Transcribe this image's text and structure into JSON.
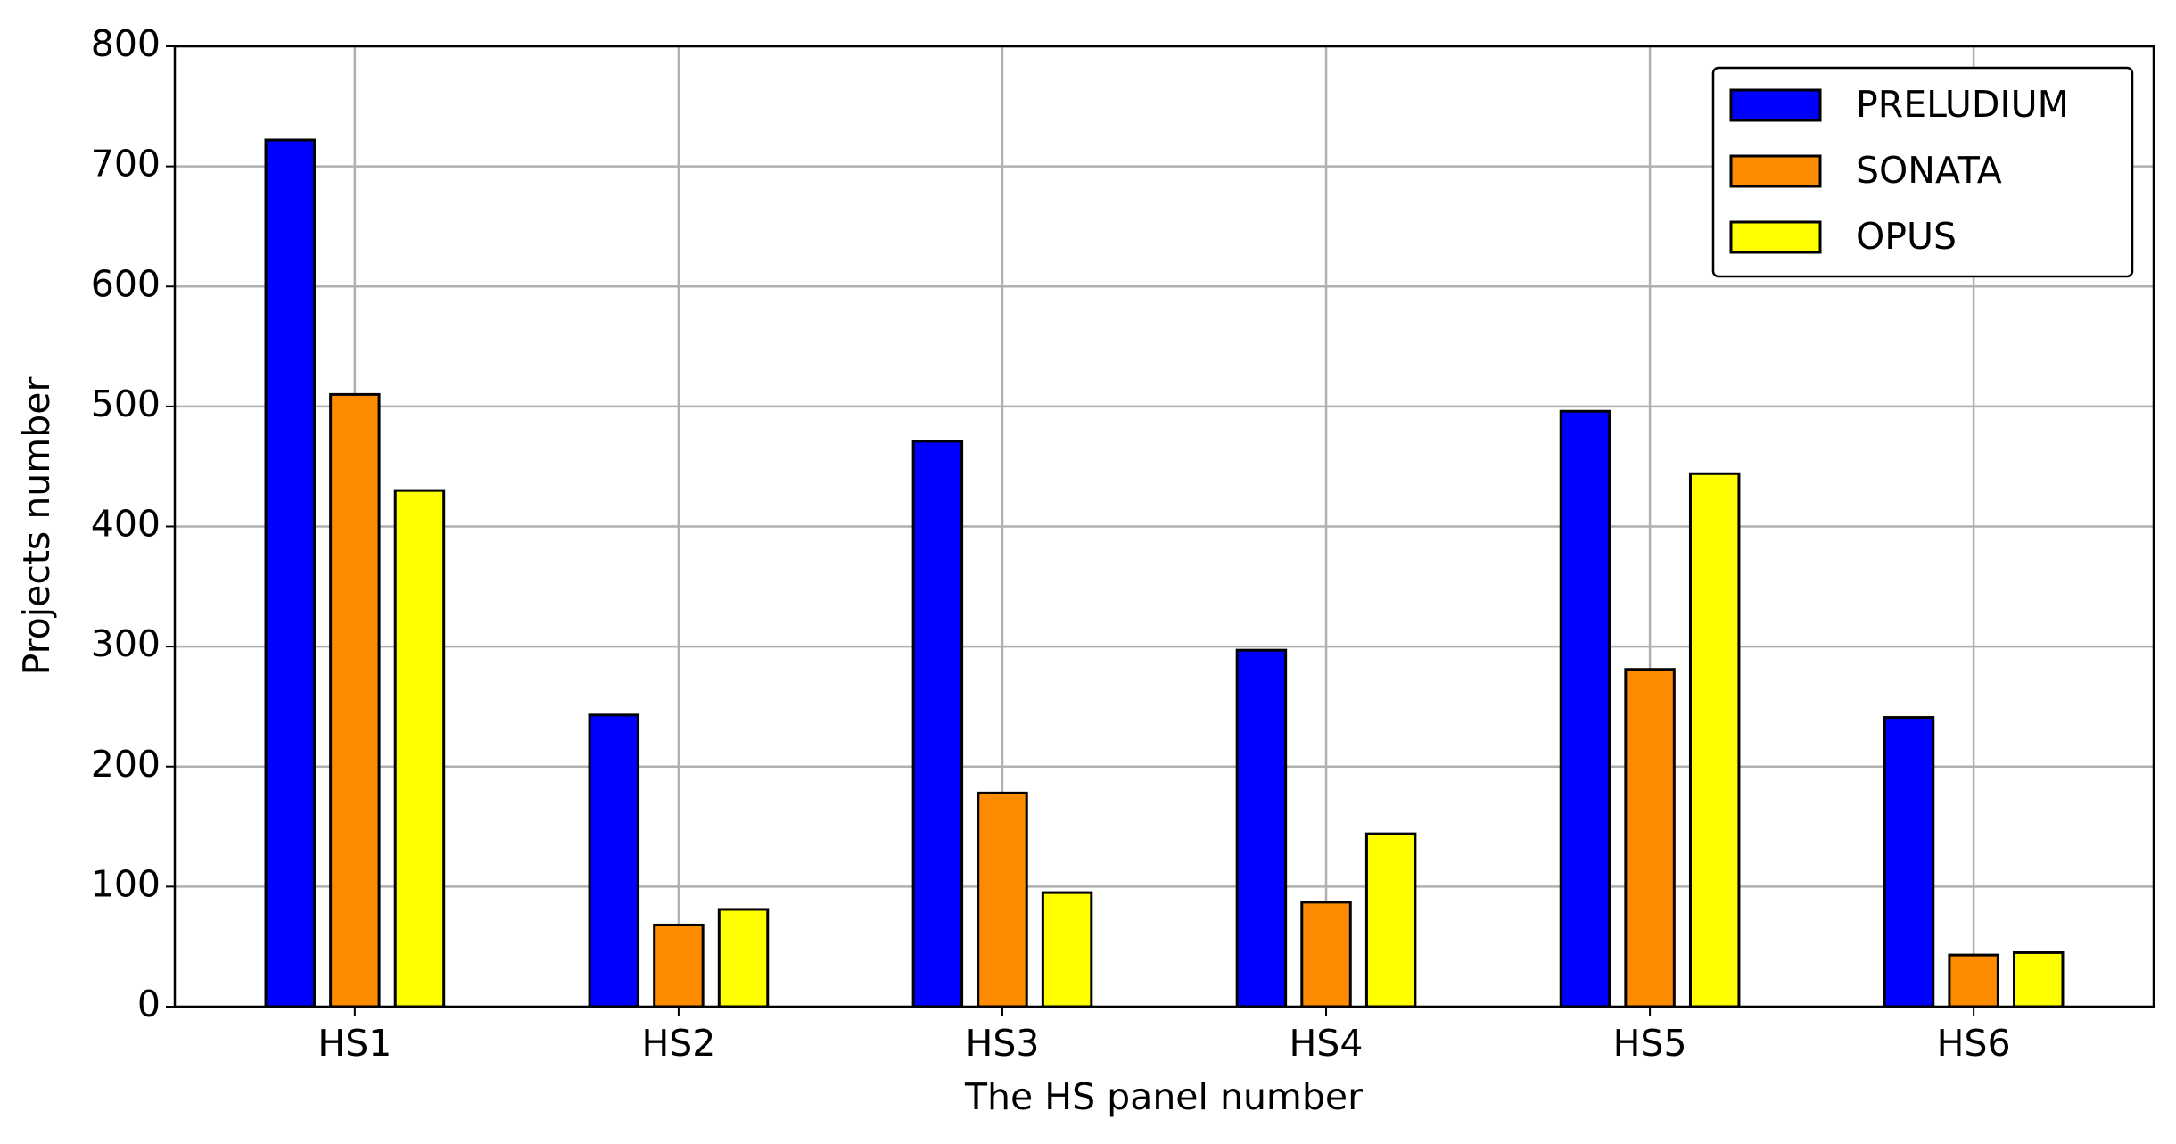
{
  "chart_data": {
    "type": "bar",
    "x_label": "The HS panel number",
    "y_label": "Projects number",
    "categories": [
      "HS1",
      "HS2",
      "HS3",
      "HS4",
      "HS5",
      "HS6"
    ],
    "series": [
      {
        "name": "PRELUDIUM",
        "color": "#0000ff",
        "values": [
          722,
          243,
          471,
          297,
          496,
          241
        ]
      },
      {
        "name": "SONATA",
        "color": "#ff8c00",
        "values": [
          510,
          68,
          178,
          87,
          281,
          43
        ]
      },
      {
        "name": "OPUS",
        "color": "#ffff00",
        "values": [
          430,
          81,
          95,
          144,
          444,
          45
        ]
      }
    ],
    "ylim": [
      0,
      800
    ],
    "yticks": [
      0,
      100,
      200,
      300,
      400,
      500,
      600,
      700,
      800
    ],
    "grid": true,
    "legend": "upper right"
  }
}
